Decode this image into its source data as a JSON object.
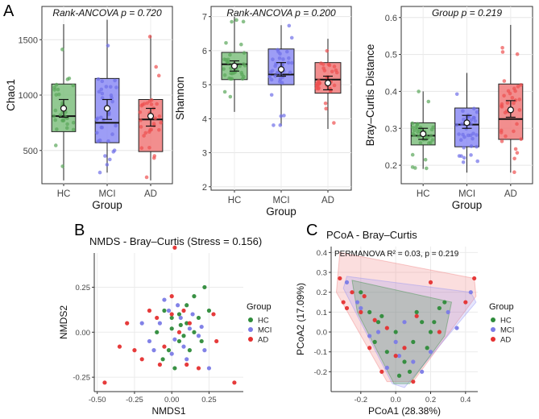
{
  "panel_labels": {
    "a": "A",
    "b": "B",
    "c": "C"
  },
  "colors": {
    "HC": "#2e8b3a",
    "MCI": "#7b7be6",
    "AD": "#e53030",
    "HC_box": "#7fbf7f",
    "MCI_box": "#8c8cf5",
    "AD_box": "#f07a7a",
    "HC_pt": "#5aa65a",
    "MCI_pt": "#6f6fe8",
    "AD_pt": "#ee5050"
  },
  "chart_data": [
    {
      "id": "chao1",
      "type": "box",
      "title": "Rank-ANCOVA p = 0.720",
      "xlabel": "Group",
      "ylabel": "Chao1",
      "categories": [
        "HC",
        "MCI",
        "AD"
      ],
      "ylim": [
        200,
        1800
      ],
      "yticks": [
        500,
        1000,
        1500
      ],
      "boxes": [
        {
          "group": "HC",
          "min": 230,
          "q1": 670,
          "median": 810,
          "q3": 1100,
          "max": 1640,
          "mean": 880,
          "ci": [
            800,
            960
          ]
        },
        {
          "group": "MCI",
          "min": 300,
          "q1": 570,
          "median": 750,
          "q3": 1150,
          "max": 1680,
          "mean": 880,
          "ci": [
            780,
            960
          ]
        },
        {
          "group": "AD",
          "min": 230,
          "q1": 490,
          "median": 780,
          "q3": 960,
          "max": 1540,
          "mean": 810,
          "ci": [
            720,
            880
          ]
        }
      ]
    },
    {
      "id": "shannon",
      "type": "box",
      "title": "Rank-ANCOVA p = 0.200",
      "xlabel": "Group",
      "ylabel": "Shannon",
      "categories": [
        "HC",
        "MCI",
        "AD"
      ],
      "ylim": [
        1.9,
        7.3
      ],
      "yticks": [
        2,
        3,
        4,
        5,
        6,
        7
      ],
      "boxes": [
        {
          "group": "HC",
          "min": 4.2,
          "q1": 5.15,
          "median": 5.6,
          "q3": 5.95,
          "max": 7.0,
          "mean": 5.55,
          "ci": [
            5.4,
            5.7
          ]
        },
        {
          "group": "MCI",
          "min": 3.8,
          "q1": 5.0,
          "median": 5.3,
          "q3": 6.05,
          "max": 6.75,
          "mean": 5.45,
          "ci": [
            5.25,
            5.65
          ]
        },
        {
          "group": "AD",
          "min": 3.7,
          "q1": 4.75,
          "median": 5.15,
          "q3": 5.65,
          "max": 6.35,
          "mean": 5.05,
          "ci": [
            4.85,
            5.25
          ]
        }
      ]
    },
    {
      "id": "braycurtis",
      "type": "box",
      "title": "Group p = 0.219",
      "xlabel": "Group",
      "ylabel": "Bray–Curtis Distance",
      "categories": [
        "HC",
        "MCI",
        "AD"
      ],
      "ylim": [
        0.15,
        0.63
      ],
      "yticks": [
        0.2,
        0.3,
        0.4,
        0.5,
        0.6
      ],
      "boxes": [
        {
          "group": "HC",
          "min": 0.19,
          "q1": 0.255,
          "median": 0.28,
          "q3": 0.315,
          "max": 0.4,
          "mean": 0.285,
          "ci": [
            0.27,
            0.3
          ]
        },
        {
          "group": "MCI",
          "min": 0.18,
          "q1": 0.25,
          "median": 0.31,
          "q3": 0.355,
          "max": 0.45,
          "mean": 0.315,
          "ci": [
            0.3,
            0.335
          ]
        },
        {
          "group": "AD",
          "min": 0.18,
          "q1": 0.27,
          "median": 0.325,
          "q3": 0.42,
          "max": 0.58,
          "mean": 0.35,
          "ci": [
            0.33,
            0.375
          ]
        }
      ]
    },
    {
      "id": "nmds",
      "type": "scatter",
      "title": "NMDS - Bray–Curtis (Stress = 0.156)",
      "xlabel": "NMDS1",
      "ylabel": "NMDS2",
      "xlim": [
        -0.52,
        0.48
      ],
      "ylim": [
        -0.33,
        0.44
      ],
      "xticks": [
        -0.5,
        -0.25,
        0.0,
        0.25
      ],
      "xtick_labels": [
        "-0.50",
        "-0.25",
        "0.00",
        "0.25"
      ],
      "yticks": [
        -0.25,
        0.0,
        0.25
      ],
      "ytick_labels": [
        "-0.25",
        "0.00",
        "0.25"
      ],
      "legend": {
        "title": "Group",
        "entries": [
          "HC",
          "MCI",
          "AD"
        ],
        "position": "right"
      },
      "series": [
        {
          "name": "HC",
          "points": [
            [
              -0.05,
              0.12
            ],
            [
              0.0,
              0.08
            ],
            [
              0.05,
              0.1
            ],
            [
              0.1,
              0.05
            ],
            [
              0.15,
              0.0
            ],
            [
              0.2,
              -0.05
            ],
            [
              0.22,
              0.25
            ],
            [
              0.1,
              0.15
            ],
            [
              -0.1,
              0.0
            ],
            [
              0.05,
              -0.05
            ],
            [
              -0.02,
              -0.1
            ],
            [
              0.0,
              0.02
            ],
            [
              0.12,
              -0.1
            ],
            [
              0.25,
              0.12
            ],
            [
              0.18,
              0.08
            ],
            [
              0.08,
              -0.02
            ],
            [
              -0.06,
              -0.15
            ],
            [
              0.02,
              -0.2
            ],
            [
              0.15,
              0.2
            ],
            [
              0.06,
              0.04
            ]
          ]
        },
        {
          "name": "MCI",
          "points": [
            [
              -0.08,
              0.05
            ],
            [
              0.04,
              0.15
            ],
            [
              0.12,
              0.02
            ],
            [
              0.18,
              -0.02
            ],
            [
              -0.15,
              -0.05
            ],
            [
              0.0,
              -0.12
            ],
            [
              0.22,
              -0.1
            ],
            [
              0.1,
              -0.15
            ],
            [
              -0.05,
              0.18
            ],
            [
              0.06,
              0.08
            ],
            [
              -0.12,
              -0.1
            ],
            [
              0.14,
              0.1
            ],
            [
              0.02,
              -0.04
            ],
            [
              -0.02,
              0.12
            ],
            [
              0.2,
              0.03
            ],
            [
              0.25,
              -0.2
            ],
            [
              0.08,
              -0.08
            ],
            [
              -0.2,
              0.05
            ]
          ]
        },
        {
          "name": "AD",
          "points": [
            [
              0.02,
              0.47
            ],
            [
              -0.1,
              0.08
            ],
            [
              0.0,
              0.2
            ],
            [
              0.05,
              0.0
            ],
            [
              -0.2,
              -0.15
            ],
            [
              -0.3,
              0.05
            ],
            [
              0.3,
              -0.05
            ],
            [
              0.42,
              -0.28
            ],
            [
              -0.45,
              -0.28
            ],
            [
              -0.15,
              0.12
            ],
            [
              0.1,
              -0.18
            ],
            [
              -0.05,
              -0.08
            ],
            [
              0.18,
              -0.2
            ],
            [
              0.08,
              0.12
            ],
            [
              -0.25,
              -0.1
            ],
            [
              0.28,
              0.1
            ],
            [
              -0.35,
              -0.08
            ],
            [
              0.0,
              0.1
            ],
            [
              -0.08,
              -0.18
            ],
            [
              0.12,
              0.05
            ]
          ]
        }
      ]
    },
    {
      "id": "pcoa",
      "type": "scatter",
      "title": "PCoA - Bray–Curtis",
      "annotation": "PERMANOVA R² = 0.03, p = 0.219",
      "xlabel": "PCoA1 (28.38%)",
      "ylabel": "PCoA2 (17.09%)",
      "xlim": [
        -0.37,
        0.47
      ],
      "ylim": [
        -0.3,
        0.43
      ],
      "xticks": [
        -0.2,
        0.0,
        0.2,
        0.4
      ],
      "xtick_labels": [
        "-0.2",
        "0.0",
        "0.2",
        "0.4"
      ],
      "yticks": [
        -0.2,
        -0.1,
        0.0,
        0.1,
        0.2,
        0.3,
        0.4
      ],
      "ytick_labels": [
        "-0.2",
        "-0.1",
        "0.0",
        "0.1",
        "0.2",
        "0.3",
        "0.4"
      ],
      "legend": {
        "title": "Group",
        "entries": [
          "HC",
          "MCI",
          "AD"
        ],
        "position": "right"
      },
      "hulls": [
        {
          "name": "AD",
          "points": [
            [
              -0.32,
              0.4
            ],
            [
              0.45,
              0.27
            ],
            [
              0.46,
              0.18
            ],
            [
              0.1,
              -0.25
            ],
            [
              -0.05,
              -0.25
            ],
            [
              -0.34,
              0.2
            ]
          ]
        },
        {
          "name": "MCI",
          "points": [
            [
              -0.28,
              0.28
            ],
            [
              0.43,
              0.2
            ],
            [
              0.46,
              0.15
            ],
            [
              0.05,
              -0.28
            ],
            [
              -0.02,
              -0.26
            ],
            [
              -0.3,
              0.22
            ]
          ]
        },
        {
          "name": "HC",
          "points": [
            [
              -0.25,
              0.26
            ],
            [
              0.32,
              0.15
            ],
            [
              0.28,
              -0.02
            ],
            [
              0.08,
              -0.26
            ],
            [
              -0.01,
              -0.26
            ],
            [
              -0.22,
              0.1
            ]
          ]
        }
      ],
      "series": [
        {
          "name": "HC",
          "points": [
            [
              -0.15,
              0.1
            ],
            [
              -0.1,
              0.05
            ],
            [
              0.0,
              0.0
            ],
            [
              0.1,
              -0.05
            ],
            [
              0.2,
              0.0
            ],
            [
              0.25,
              0.12
            ],
            [
              -0.2,
              0.2
            ],
            [
              0.05,
              -0.15
            ],
            [
              -0.05,
              -0.1
            ],
            [
              0.15,
              0.05
            ],
            [
              0.28,
              0.15
            ],
            [
              0.02,
              -0.22
            ],
            [
              -0.08,
              0.08
            ],
            [
              0.18,
              -0.08
            ],
            [
              0.12,
              0.1
            ],
            [
              0.22,
              0.05
            ],
            [
              -0.12,
              -0.05
            ],
            [
              0.08,
              -0.2
            ]
          ]
        },
        {
          "name": "MCI",
          "points": [
            [
              -0.28,
              0.25
            ],
            [
              -0.2,
              0.12
            ],
            [
              -0.1,
              0.0
            ],
            [
              0.0,
              -0.05
            ],
            [
              0.1,
              -0.15
            ],
            [
              0.3,
              0.1
            ],
            [
              0.43,
              0.2
            ],
            [
              -0.05,
              -0.18
            ],
            [
              0.05,
              0.05
            ],
            [
              -0.15,
              -0.02
            ],
            [
              0.2,
              -0.1
            ],
            [
              0.35,
              0.02
            ],
            [
              -0.22,
              0.15
            ],
            [
              0.15,
              -0.2
            ],
            [
              0.02,
              -0.12
            ]
          ]
        },
        {
          "name": "AD",
          "points": [
            [
              -0.32,
              0.27
            ],
            [
              -0.25,
              0.2
            ],
            [
              -0.18,
              0.18
            ],
            [
              -0.12,
              0.06
            ],
            [
              -0.3,
              0.15
            ],
            [
              0.2,
              0.25
            ],
            [
              0.45,
              0.27
            ],
            [
              0.1,
              -0.25
            ],
            [
              -0.05,
              0.02
            ],
            [
              0.0,
              -0.12
            ],
            [
              -0.2,
              0.1
            ],
            [
              0.05,
              -0.08
            ],
            [
              0.25,
              0.0
            ],
            [
              -0.15,
              -0.08
            ],
            [
              0.4,
              0.15
            ],
            [
              -0.28,
              0.12
            ],
            [
              0.12,
              0.08
            ],
            [
              -0.08,
              -0.2
            ]
          ]
        }
      ]
    }
  ]
}
